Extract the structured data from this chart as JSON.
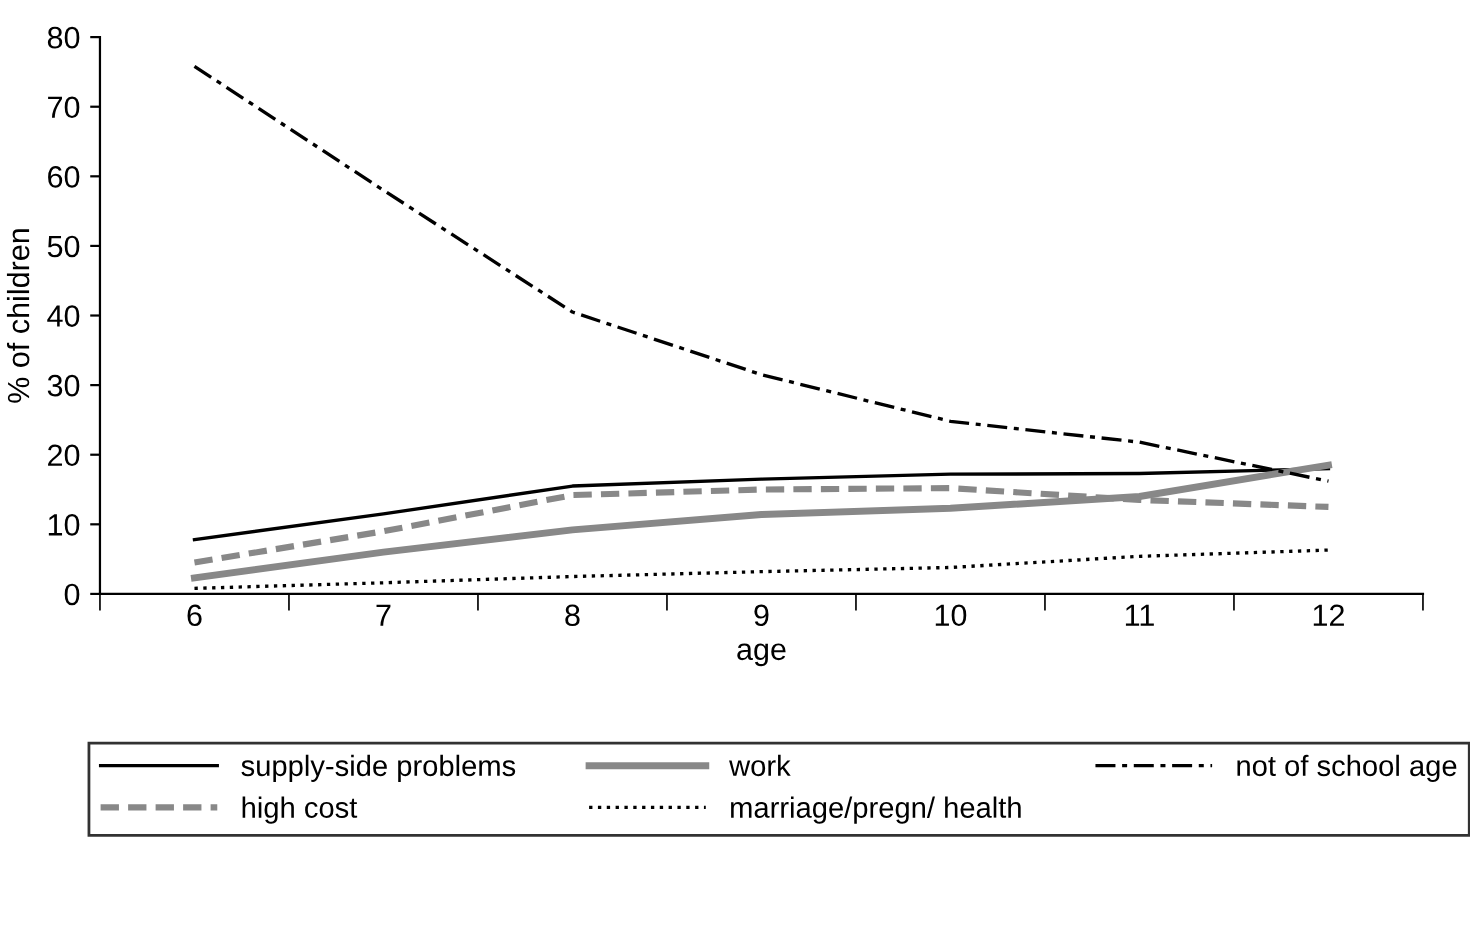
{
  "chart_data": {
    "type": "line",
    "xlabel": "age",
    "ylabel": "% of children",
    "categories": [
      "6",
      "7",
      "8",
      "9",
      "10",
      "11",
      "12"
    ],
    "ylim": [
      0,
      80
    ],
    "yticks": [
      0,
      10,
      20,
      30,
      40,
      50,
      60,
      70,
      80
    ],
    "grid": false,
    "legend": "bottom",
    "marker": "none",
    "series": [
      {
        "name": "supply-side problems",
        "color": "#000000",
        "line_style": "solid",
        "values": [
          7.8,
          11.5,
          15.5,
          16.5,
          17.2,
          17.3,
          18.0
        ]
      },
      {
        "name": "high cost",
        "color": "#888888",
        "line_style": "dashed",
        "values": [
          4.5,
          9.0,
          14.2,
          15.0,
          15.2,
          13.5,
          12.5
        ]
      },
      {
        "name": "work",
        "color": "#888888",
        "line_style": "solid",
        "values": [
          2.3,
          6.0,
          9.2,
          11.4,
          12.3,
          14.0,
          18.5
        ]
      },
      {
        "name": "marriage/pregn/ health",
        "color": "#000000",
        "line_style": "dotted",
        "values": [
          0.8,
          1.6,
          2.5,
          3.2,
          3.8,
          5.4,
          6.3
        ]
      },
      {
        "name": "not of school age",
        "color": "#000000",
        "line_style": "dashdot",
        "values": [
          75.8,
          58.0,
          40.5,
          31.5,
          24.8,
          21.8,
          16.2
        ]
      }
    ]
  }
}
